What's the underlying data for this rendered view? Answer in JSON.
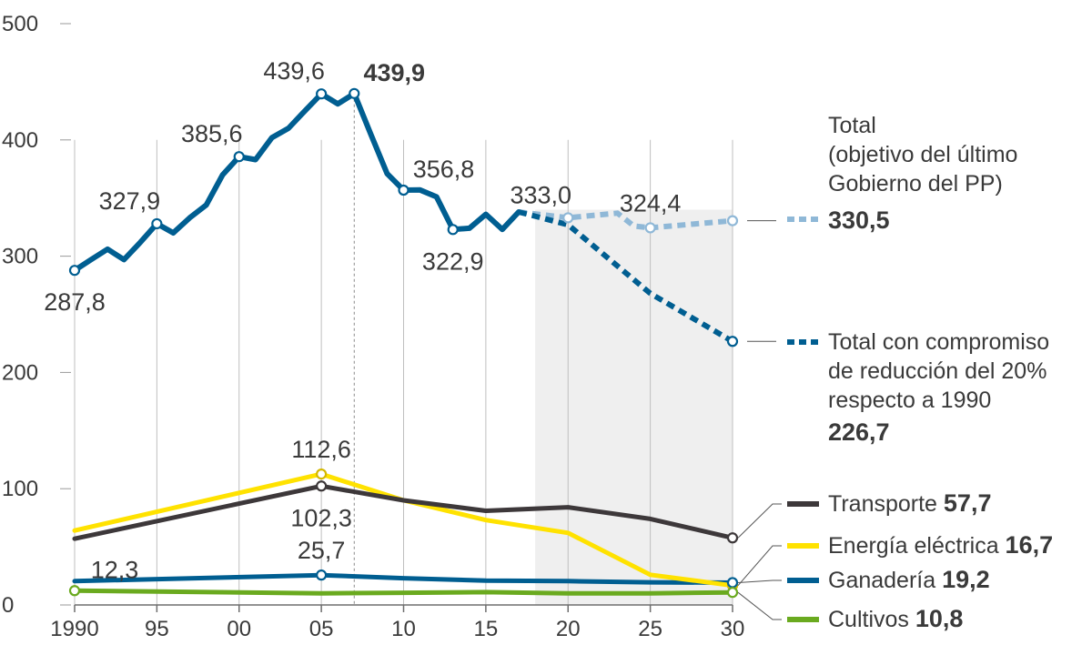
{
  "chart_data": {
    "type": "line",
    "xlim": [
      1990,
      2030
    ],
    "ylim": [
      0,
      500
    ],
    "yticks": [
      0,
      100,
      200,
      300,
      400,
      500
    ],
    "xticks": [
      {
        "value": 1990,
        "label": "1990"
      },
      {
        "value": 1995,
        "label": "95"
      },
      {
        "value": 2000,
        "label": "00"
      },
      {
        "value": 2005,
        "label": "05"
      },
      {
        "value": 2010,
        "label": "10"
      },
      {
        "value": 2015,
        "label": "15"
      },
      {
        "value": 2020,
        "label": "20"
      },
      {
        "value": 2025,
        "label": "25"
      },
      {
        "value": 2030,
        "label": "30"
      }
    ],
    "grid": "vertical",
    "projection_region": [
      2018,
      2030
    ],
    "series": [
      {
        "key": "total_hist",
        "color": "#005e91",
        "style": "solid",
        "x": [
          1990,
          1991,
          1992,
          1993,
          1994,
          1995,
          1996,
          1997,
          1998,
          1999,
          2000,
          2001,
          2002,
          2003,
          2004,
          2005,
          2006,
          2007,
          2008,
          2009,
          2010,
          2011,
          2012,
          2013,
          2014,
          2015,
          2016,
          2017
        ],
        "values": [
          287.8,
          297,
          306,
          297,
          312,
          327.9,
          320,
          333,
          344,
          370,
          385.6,
          383,
          402,
          410,
          425,
          439.6,
          431,
          439.9,
          405,
          371,
          356.8,
          357,
          351,
          322.9,
          324,
          336,
          323,
          338
        ]
      },
      {
        "key": "total_pp",
        "name": "Total (objetivo del último Gobierno del PP)",
        "color": "#8fb8d7",
        "style": "dashed",
        "x": [
          2017,
          2020,
          2023,
          2024,
          2025,
          2030
        ],
        "values": [
          338,
          333.0,
          337,
          326,
          324.4,
          330.5
        ]
      },
      {
        "key": "total_20",
        "name": "Total con compromiso de reducción del 20% respecto a 1990",
        "color": "#005e91",
        "style": "dashed",
        "x": [
          2017,
          2020,
          2025,
          2030
        ],
        "values": [
          338,
          327,
          268,
          226.7
        ]
      },
      {
        "key": "transporte",
        "name": "Transporte",
        "color": "#3d383a",
        "style": "solid",
        "x": [
          1990,
          2005,
          2010,
          2015,
          2020,
          2025,
          2030
        ],
        "values": [
          57,
          102.3,
          90,
          81,
          84,
          74,
          57.7
        ]
      },
      {
        "key": "energia",
        "name": "Energía eléctrica",
        "color": "#ffe200",
        "style": "solid",
        "x": [
          1990,
          2005,
          2010,
          2015,
          2020,
          2025,
          2030
        ],
        "values": [
          64,
          112.6,
          90,
          73,
          62,
          26,
          16.7
        ]
      },
      {
        "key": "ganaderia",
        "name": "Ganadería",
        "color": "#005e91",
        "style": "solid",
        "x": [
          1990,
          2005,
          2010,
          2015,
          2020,
          2025,
          2030
        ],
        "values": [
          20.5,
          25.7,
          23,
          21,
          20.5,
          19.5,
          19.2
        ]
      },
      {
        "key": "cultivos",
        "name": "Cultivos",
        "color": "#6aaa1f",
        "style": "solid",
        "x": [
          1990,
          2005,
          2010,
          2015,
          2020,
          2025,
          2030
        ],
        "values": [
          12.3,
          10,
          10.5,
          11,
          10,
          10,
          10.8
        ]
      }
    ],
    "markers": [
      {
        "series": "total_hist",
        "x": 1990,
        "y": 287.8
      },
      {
        "series": "total_hist",
        "x": 1995,
        "y": 327.9
      },
      {
        "series": "total_hist",
        "x": 2000,
        "y": 385.6
      },
      {
        "series": "total_hist",
        "x": 2005,
        "y": 439.6
      },
      {
        "series": "total_hist",
        "x": 2007,
        "y": 439.9
      },
      {
        "series": "total_hist",
        "x": 2010,
        "y": 356.8
      },
      {
        "series": "total_hist",
        "x": 2013,
        "y": 322.9
      },
      {
        "series": "total_pp",
        "x": 2020,
        "y": 333.0
      },
      {
        "series": "total_pp",
        "x": 2025,
        "y": 324.4
      },
      {
        "series": "total_pp",
        "x": 2030,
        "y": 330.5
      },
      {
        "series": "total_20",
        "x": 2030,
        "y": 226.7
      },
      {
        "series": "transporte",
        "x": 2005,
        "y": 102.3
      },
      {
        "series": "transporte",
        "x": 2030,
        "y": 57.7
      },
      {
        "series": "energia",
        "x": 2005,
        "y": 112.6
      },
      {
        "series": "energia",
        "x": 2030,
        "y": 16.7
      },
      {
        "series": "ganaderia",
        "x": 2005,
        "y": 25.7
      },
      {
        "series": "ganaderia",
        "x": 2030,
        "y": 19.2
      },
      {
        "series": "cultivos",
        "x": 1990,
        "y": 12.3
      },
      {
        "series": "cultivos",
        "x": 2030,
        "y": 10.8
      }
    ],
    "data_labels": [
      {
        "text": "287,8",
        "x": 1990,
        "y": 287.8,
        "pos": "below",
        "bold": false
      },
      {
        "text": "327,9",
        "x": 1995,
        "y": 327.9,
        "pos": "above-left",
        "bold": false
      },
      {
        "text": "385,6",
        "x": 2000,
        "y": 385.6,
        "pos": "above-left",
        "bold": false
      },
      {
        "text": "439,6",
        "x": 2005,
        "y": 439.6,
        "pos": "above-left",
        "bold": false
      },
      {
        "text": "439,9",
        "x": 2007,
        "y": 439.9,
        "pos": "above-right",
        "bold": true
      },
      {
        "text": "356,8",
        "x": 2010,
        "y": 356.8,
        "pos": "above-right",
        "bold": false
      },
      {
        "text": "322,9",
        "x": 2013,
        "y": 322.9,
        "pos": "below",
        "bold": false
      },
      {
        "text": "333,0",
        "x": 2020,
        "y": 333.0,
        "pos": "above-left",
        "bold": false
      },
      {
        "text": "324,4",
        "x": 2025,
        "y": 324.4,
        "pos": "above",
        "bold": false
      },
      {
        "text": "112,6",
        "x": 2005,
        "y": 112.6,
        "pos": "above",
        "bold": false
      },
      {
        "text": "102,3",
        "x": 2005,
        "y": 102.3,
        "pos": "below",
        "bold": false
      },
      {
        "text": "25,7",
        "x": 2005,
        "y": 25.7,
        "pos": "above",
        "bold": false
      },
      {
        "text": "12,3",
        "x": 1990,
        "y": 12.3,
        "pos": "above-right",
        "bold": false
      }
    ],
    "peak_marker_x": 2007,
    "legend": {
      "placement": "right",
      "entries": [
        {
          "series": "total_pp",
          "lines": [
            "Total",
            "(objetivo del último",
            "Gobierno del PP)"
          ],
          "value": "330,5",
          "anchor_value": 330.5
        },
        {
          "series": "total_20",
          "lines": [
            "Total con compromiso",
            "de reducción del 20%",
            "respecto a 1990"
          ],
          "value": "226,7",
          "anchor_value": 226.7
        },
        {
          "series": "transporte",
          "lines": [
            "Transporte"
          ],
          "value": "57,7",
          "anchor_value": 57.7
        },
        {
          "series": "energia",
          "lines": [
            "Energía eléctrica"
          ],
          "value": "16,7",
          "anchor_value": 16.7
        },
        {
          "series": "ganaderia",
          "lines": [
            "Ganadería"
          ],
          "value": "19,2",
          "anchor_value": 19.2
        },
        {
          "series": "cultivos",
          "lines": [
            "Cultivos"
          ],
          "value": "10,8",
          "anchor_value": 10.8
        }
      ]
    }
  }
}
